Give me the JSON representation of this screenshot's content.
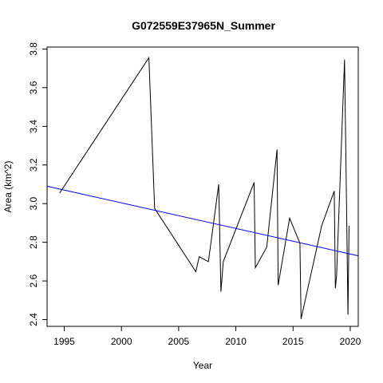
{
  "chart_data": {
    "type": "line",
    "title": "G072559E37965N_Summer",
    "xlabel": "Year",
    "ylabel": "Area (km^2)",
    "xlim": [
      1993.5,
      2020.7
    ],
    "ylim": [
      2.365,
      3.81
    ],
    "x_ticks": [
      1995,
      2000,
      2005,
      2010,
      2015,
      2020
    ],
    "y_ticks": [
      2.4,
      2.6,
      2.8,
      3.0,
      3.2,
      3.4,
      3.6,
      3.8
    ],
    "grid": false,
    "series": [
      {
        "color": "#000000",
        "points": [
          [
            1994.6,
            3.055
          ],
          [
            2002.4,
            3.755
          ],
          [
            2002.9,
            2.975
          ],
          [
            2006.5,
            2.648
          ],
          [
            2006.8,
            2.725
          ],
          [
            2007.6,
            2.7
          ],
          [
            2008.5,
            3.1
          ],
          [
            2008.7,
            2.545
          ],
          [
            2008.9,
            2.7
          ],
          [
            2011.6,
            3.11
          ],
          [
            2011.7,
            2.668
          ],
          [
            2012.7,
            2.775
          ],
          [
            2013.6,
            3.28
          ],
          [
            2013.7,
            2.578
          ],
          [
            2014.7,
            2.925
          ],
          [
            2015.6,
            2.795
          ],
          [
            2015.7,
            2.403
          ],
          [
            2017.5,
            2.885
          ],
          [
            2018.6,
            3.065
          ],
          [
            2018.7,
            2.562
          ],
          [
            2018.8,
            2.625
          ],
          [
            2019.5,
            3.745
          ],
          [
            2019.7,
            2.875
          ],
          [
            2019.8,
            2.425
          ],
          [
            2019.9,
            2.885
          ]
        ]
      },
      {
        "color": "#0000ff",
        "points": [
          [
            1993.5,
            3.09
          ],
          [
            2020.7,
            2.73
          ]
        ]
      }
    ]
  }
}
